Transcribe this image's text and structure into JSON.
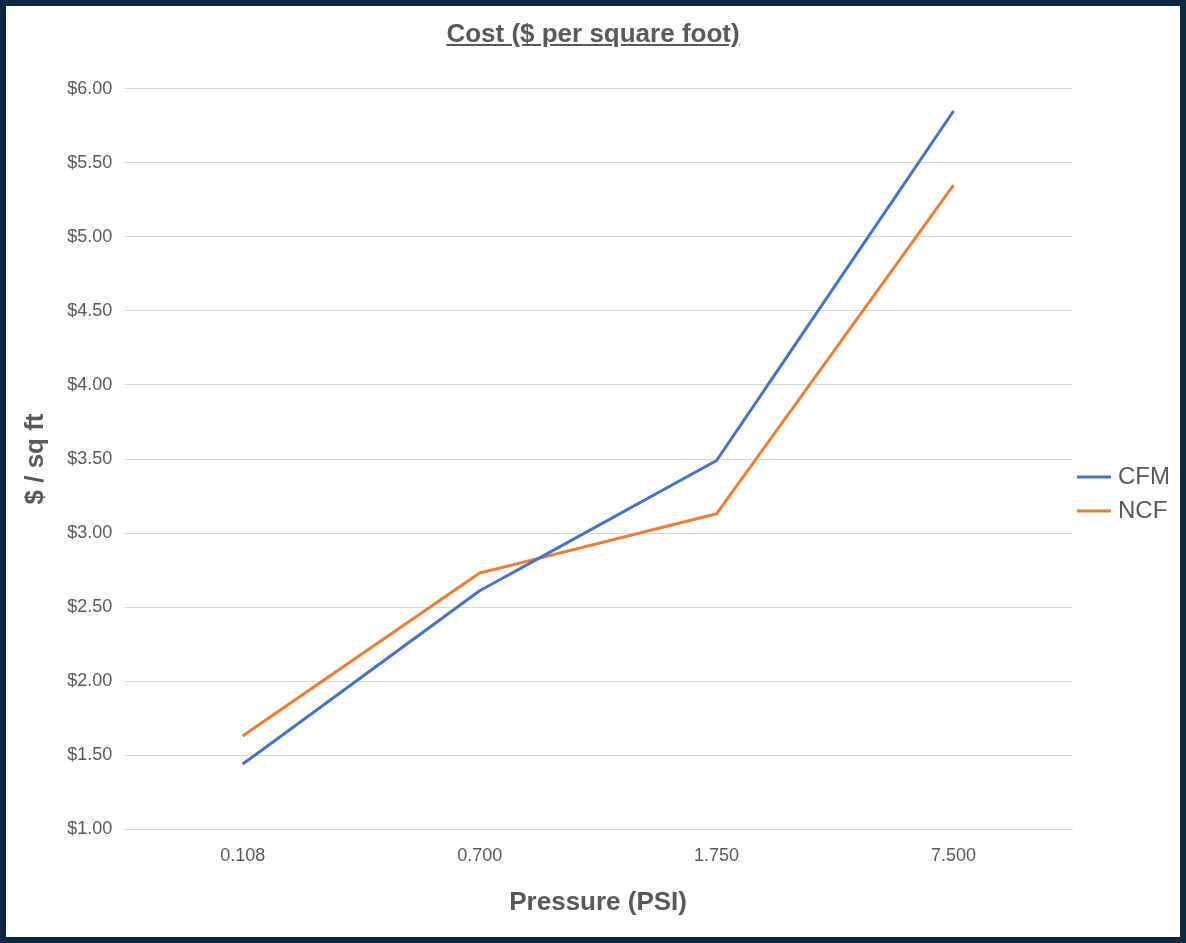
{
  "chart_data": {
    "type": "line",
    "title": "Cost ($ per square foot)",
    "xlabel": "Pressure (PSI)",
    "ylabel": "$ / sq ft",
    "categories": [
      "0.108",
      "0.700",
      "1.750",
      "7.500"
    ],
    "series": [
      {
        "name": "CFM",
        "color": "#4472c4",
        "values": [
          1.44,
          2.61,
          3.49,
          5.85
        ]
      },
      {
        "name": "NCF",
        "color": "#ed7d31",
        "values": [
          1.63,
          2.73,
          3.13,
          5.35
        ]
      }
    ],
    "ylim": [
      1,
      6
    ],
    "yticks": [
      {
        "value": 1,
        "label": "$1.00"
      },
      {
        "value": 1.5,
        "label": "$1.50"
      },
      {
        "value": 2,
        "label": "$2.00"
      },
      {
        "value": 2.5,
        "label": "$2.50"
      },
      {
        "value": 3,
        "label": "$3.00"
      },
      {
        "value": 3.5,
        "label": "$3.50"
      },
      {
        "value": 4,
        "label": "$4.00"
      },
      {
        "value": 4.5,
        "label": "$4.50"
      },
      {
        "value": 5,
        "label": "$5.00"
      },
      {
        "value": 5.5,
        "label": "$5.50"
      },
      {
        "value": 6,
        "label": "$6.00"
      }
    ],
    "grid": "y",
    "legend": "right",
    "marker": "none",
    "line_style": "solid"
  }
}
